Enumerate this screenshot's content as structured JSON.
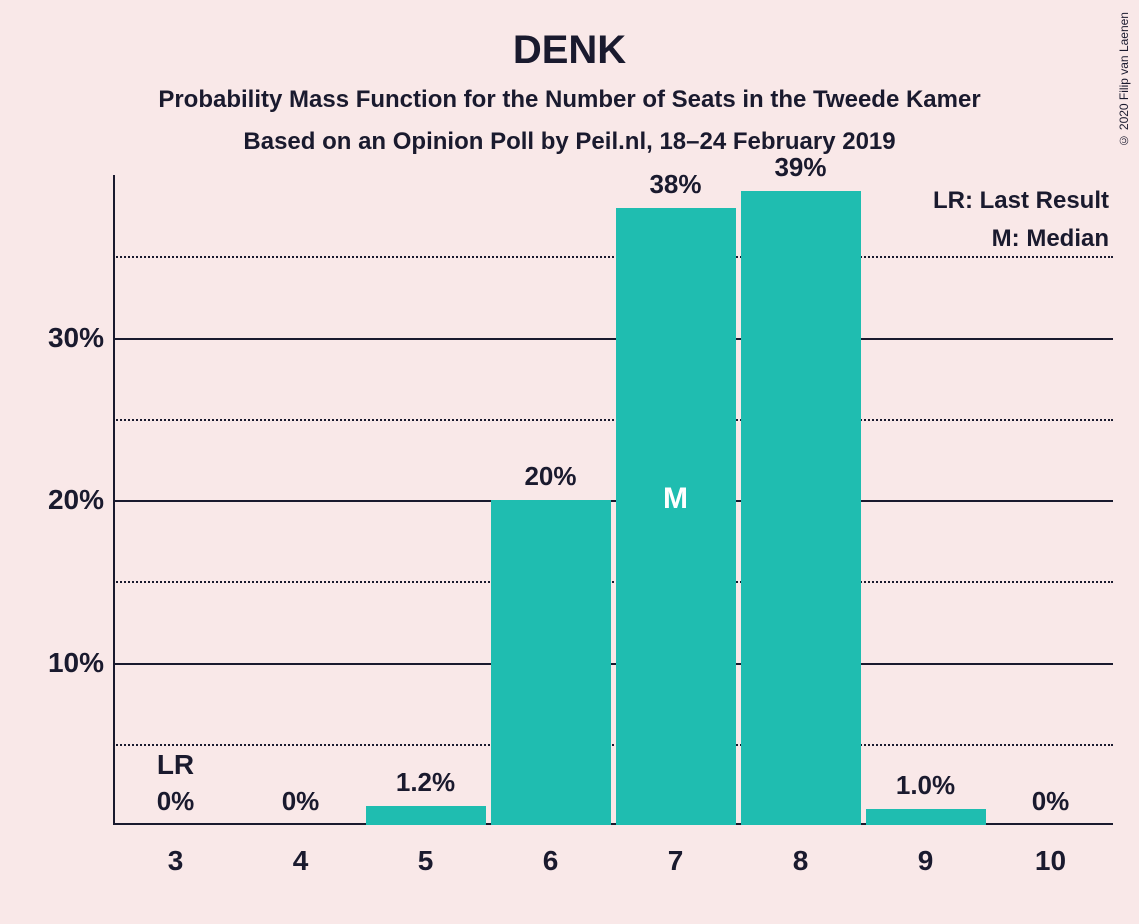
{
  "chart": {
    "type": "bar",
    "title": "DENK",
    "subtitle1": "Probability Mass Function for the Number of Seats in the Tweede Kamer",
    "subtitle2": "Based on an Opinion Poll by Peil.nl, 18–24 February 2019",
    "background_color": "#f9e8e8",
    "text_color": "#1a1a2e",
    "bar_color": "#1fbdb0",
    "grid_color": "#1a1a2e",
    "ylim": [
      0,
      40
    ],
    "y_ticks_major": [
      10,
      20,
      30
    ],
    "y_ticks_minor": [
      5,
      15,
      25,
      35
    ],
    "y_tick_labels": [
      "10%",
      "20%",
      "30%"
    ],
    "categories": [
      "3",
      "4",
      "5",
      "6",
      "7",
      "8",
      "9",
      "10"
    ],
    "values": [
      0,
      0,
      1.2,
      20,
      38,
      39,
      1.0,
      0
    ],
    "value_labels": [
      "0%",
      "0%",
      "1.2%",
      "20%",
      "38%",
      "39%",
      "1.0%",
      "0%"
    ],
    "bar_width_ratio": 0.96,
    "lr_index": 0,
    "lr_label": "LR",
    "median_index": 4,
    "median_label": "M",
    "legend_lines": [
      "LR: Last Result",
      "M: Median"
    ],
    "copyright": "© 2020 Filip van Laenen",
    "title_fontsize": 40,
    "subtitle_fontsize": 24,
    "tick_fontsize": 28,
    "label_fontsize": 26,
    "legend_fontsize": 24
  }
}
